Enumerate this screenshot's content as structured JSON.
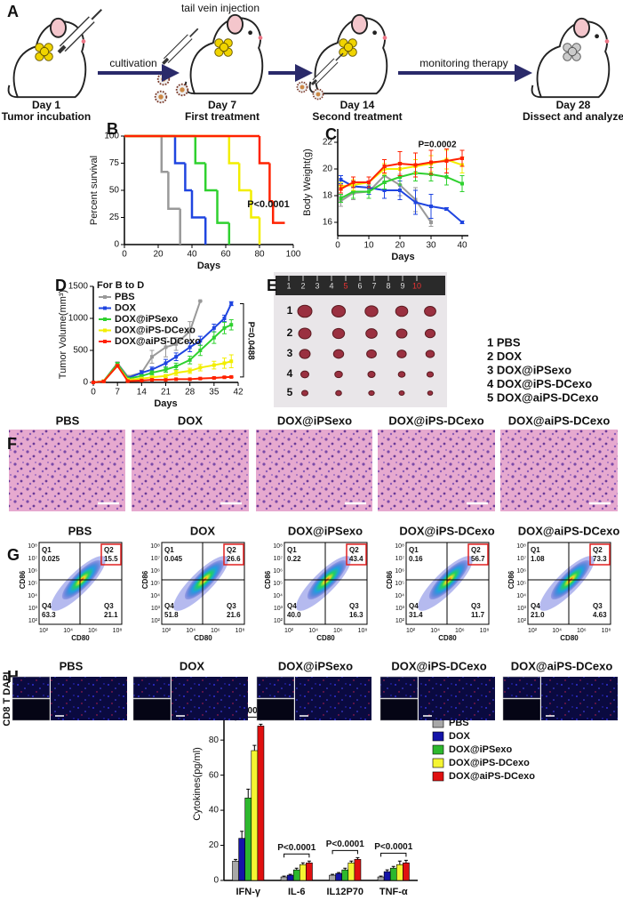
{
  "panel_labels": [
    "A",
    "B",
    "C",
    "D",
    "E",
    "F",
    "G",
    "H",
    "I"
  ],
  "schematic": {
    "injection_label": "tail vein injection",
    "arrow_labels": [
      "cultivation",
      "monitoring therapy"
    ],
    "steps": [
      {
        "day": "Day 1",
        "label": "Tumor incubation"
      },
      {
        "day": "Day 7",
        "label": "First treatment"
      },
      {
        "day": "Day 14",
        "label": "Second treatment"
      },
      {
        "day": "Day 28",
        "label": "Dissect and analyze"
      }
    ]
  },
  "chart_data": [
    {
      "type": "step",
      "x_label": "Days",
      "y_label": "Percent survival",
      "xlim": [
        0,
        100
      ],
      "xticks": [
        0,
        20,
        40,
        60,
        80,
        100
      ],
      "ylim": [
        0,
        100
      ],
      "yticks": [
        0,
        25,
        50,
        75,
        100
      ],
      "annotation": "P<0.0001",
      "series": [
        {
          "color": "#999999",
          "x": [
            0,
            22,
            26,
            33
          ],
          "values": [
            100,
            67,
            33,
            0
          ]
        },
        {
          "color": "#1f45e0",
          "x": [
            0,
            30,
            36,
            40,
            48
          ],
          "values": [
            100,
            75,
            50,
            25,
            0
          ]
        },
        {
          "color": "#2fd12f",
          "x": [
            0,
            42,
            48,
            55,
            62
          ],
          "values": [
            100,
            75,
            50,
            20,
            0
          ]
        },
        {
          "color": "#f2ee00",
          "x": [
            0,
            62,
            68,
            75,
            80
          ],
          "values": [
            100,
            75,
            50,
            25,
            0
          ]
        },
        {
          "color": "#ff2200",
          "x": [
            0,
            80,
            86,
            88,
            95
          ],
          "values": [
            100,
            75,
            40,
            20,
            20
          ]
        }
      ]
    },
    {
      "type": "line",
      "x_label": "Days",
      "y_label": "Body Weight(g)",
      "xlim": [
        0,
        42
      ],
      "xticks": [
        0,
        10,
        20,
        30,
        40
      ],
      "ylim": [
        15,
        23
      ],
      "yticks": [
        16,
        18,
        20,
        22
      ],
      "annotation": "P=0.0002",
      "x": [
        1,
        5,
        10,
        15,
        20,
        25,
        30,
        35,
        40
      ],
      "series": [
        {
          "color": "#999999",
          "values": [
            17.6,
            18.2,
            18.3,
            19.5,
            18.8,
            17.7,
            16.0,
            null,
            null
          ],
          "errors": [
            0.4,
            0.5,
            0.5,
            0.6,
            0.8,
            0.9,
            0.3,
            null,
            null
          ]
        },
        {
          "color": "#1f45e0",
          "values": [
            19.2,
            18.7,
            18.6,
            18.4,
            18.4,
            17.5,
            17.2,
            17.0,
            16.0
          ],
          "errors": [
            0.3,
            0.4,
            0.5,
            0.6,
            0.7,
            0.9,
            0.9,
            0.1,
            0.1
          ]
        },
        {
          "color": "#2fd12f",
          "values": [
            17.8,
            18.3,
            18.3,
            19.0,
            19.4,
            19.7,
            19.6,
            19.4,
            18.9
          ],
          "errors": [
            0.3,
            0.5,
            0.5,
            0.5,
            0.6,
            0.6,
            0.5,
            0.6,
            0.6
          ]
        },
        {
          "color": "#f2ee00",
          "values": [
            18.7,
            18.8,
            19.0,
            20.0,
            20.0,
            20.2,
            20.4,
            20.7,
            20.3
          ],
          "errors": [
            0.3,
            0.4,
            0.4,
            0.4,
            0.5,
            0.5,
            0.6,
            0.7,
            0.6
          ]
        },
        {
          "color": "#ff2200",
          "values": [
            18.5,
            19.0,
            19.0,
            20.2,
            20.4,
            20.3,
            20.5,
            20.6,
            20.8
          ],
          "errors": [
            0.3,
            0.4,
            0.4,
            0.5,
            0.9,
            0.9,
            0.9,
            0.9,
            0.6
          ]
        }
      ]
    },
    {
      "type": "line",
      "x_label": "Days",
      "y_label": "Tumor Volume(mm³)",
      "xlim": [
        0,
        42
      ],
      "xticks": [
        0,
        7,
        14,
        21,
        28,
        35,
        42
      ],
      "ylim": [
        0,
        1500
      ],
      "yticks": [
        0,
        500,
        1000,
        1500
      ],
      "annotation": "P=0.0488",
      "legend_title": "For B to D",
      "x": [
        0,
        3,
        7,
        10,
        14,
        17,
        21,
        24,
        28,
        31,
        35,
        38,
        40
      ],
      "series": [
        {
          "name": "PBS",
          "color": "#999999",
          "values": [
            0,
            20,
            300,
            90,
            150,
            400,
            550,
            600,
            800,
            1270,
            null,
            null,
            null
          ],
          "errors": [
            0,
            5,
            20,
            20,
            40,
            100,
            150,
            100,
            150,
            0,
            null,
            null,
            null
          ]
        },
        {
          "name": "DOX",
          "color": "#1f45e0",
          "values": [
            0,
            20,
            290,
            70,
            150,
            200,
            300,
            400,
            550,
            650,
            850,
            1000,
            1230
          ],
          "errors": [
            0,
            5,
            20,
            15,
            30,
            40,
            60,
            60,
            70,
            70,
            60,
            50,
            30
          ]
        },
        {
          "name": "DOX@iPSexo",
          "color": "#2fd12f",
          "values": [
            0,
            20,
            290,
            60,
            100,
            150,
            200,
            250,
            350,
            500,
            700,
            850,
            900
          ],
          "errors": [
            0,
            5,
            20,
            10,
            20,
            30,
            40,
            50,
            60,
            80,
            90,
            90,
            80
          ]
        },
        {
          "name": "DOX@iPS-DCexo",
          "color": "#f2ee00",
          "values": [
            0,
            20,
            260,
            40,
            60,
            80,
            100,
            150,
            180,
            230,
            270,
            300,
            330
          ],
          "errors": [
            0,
            5,
            20,
            10,
            15,
            20,
            25,
            40,
            40,
            50,
            60,
            80,
            100
          ]
        },
        {
          "name": "DOX@aiPS-DCexo",
          "color": "#ff2200",
          "values": [
            0,
            15,
            260,
            20,
            30,
            40,
            40,
            50,
            50,
            60,
            70,
            80,
            85
          ],
          "errors": [
            0,
            3,
            20,
            5,
            5,
            5,
            5,
            5,
            5,
            10,
            10,
            10,
            10
          ]
        }
      ]
    },
    {
      "type": "bar",
      "y_label": "Cytokines(pg/ml)",
      "categories": [
        "IFN-γ",
        "IL-6",
        "IL12P70",
        "TNF-α"
      ],
      "ylim": [
        0,
        110
      ],
      "yticks": [
        0,
        20,
        40,
        60,
        80,
        100
      ],
      "annotations": [
        "P<0.0001",
        "P<0.0001",
        "P<0.0001",
        "P<0.0001"
      ],
      "series": [
        {
          "name": "PBS",
          "color": "#a8a8a8",
          "values": [
            11,
            2,
            3,
            2
          ],
          "errors": [
            1,
            0.5,
            0.5,
            0.5
          ]
        },
        {
          "name": "DOX",
          "color": "#1414a8",
          "values": [
            24,
            3,
            4,
            5
          ],
          "errors": [
            4,
            0.5,
            0.5,
            1
          ]
        },
        {
          "name": "DOX@iPSexo",
          "color": "#2db82d",
          "values": [
            47,
            6,
            6,
            7
          ],
          "errors": [
            5,
            1,
            1,
            1
          ]
        },
        {
          "name": "DOX@iPS-DCexo",
          "color": "#f5f532",
          "values": [
            74,
            9,
            10,
            9
          ],
          "errors": [
            3,
            1,
            1,
            2
          ]
        },
        {
          "name": "DOX@aiPS-DCexo",
          "color": "#e01010",
          "values": [
            88,
            10,
            12,
            10
          ],
          "errors": [
            1,
            1,
            1,
            1.5
          ]
        }
      ]
    }
  ],
  "tumor_photo": {
    "ruler_numbers": [
      "1",
      "2",
      "3",
      "4",
      "5",
      "6",
      "7",
      "8",
      "9",
      "10"
    ],
    "row_labels": [
      "1",
      "2",
      "3",
      "4",
      "5"
    ],
    "legend": [
      "1 PBS",
      "2 DOX",
      "3 DOX@iPSexo",
      "4 DOX@iPS-DCexo",
      "5 DOX@aiPS-DCexo"
    ]
  },
  "histology": {
    "titles": [
      "PBS",
      "DOX",
      "DOX@iPSexo",
      "DOX@iPS-DCexo",
      "DOX@aiPS-DCexo"
    ]
  },
  "flow": {
    "titles": [
      "PBS",
      "DOX",
      "DOX@iPSexo",
      "DOX@iPS-DCexo",
      "DOX@aiPS-DCexo"
    ],
    "x_label": "CD80",
    "y_label": "CD86",
    "ticks": [
      "10²",
      "10³",
      "10⁴",
      "10⁵",
      "10⁶",
      "10⁷",
      "10⁸"
    ],
    "quadrants": [
      "Q1",
      "Q2",
      "Q3",
      "Q4"
    ],
    "plots": [
      [
        "0.025",
        "15.5",
        "21.1",
        "63.3"
      ],
      [
        "0.045",
        "26.6",
        "21.6",
        "51.8"
      ],
      [
        "0.22",
        "43.4",
        "16.3",
        "40.0"
      ],
      [
        "0.16",
        "56.7",
        "11.7",
        "31.4"
      ],
      [
        "1.08",
        "73.3",
        "4.63",
        "21.0"
      ]
    ]
  },
  "fluorescence": {
    "stain_label": "CD8 T DAPI",
    "titles": [
      "PBS",
      "DOX",
      "DOX@iPSexo",
      "DOX@iPS-DCexo",
      "DOX@aiPS-DCexo"
    ]
  }
}
